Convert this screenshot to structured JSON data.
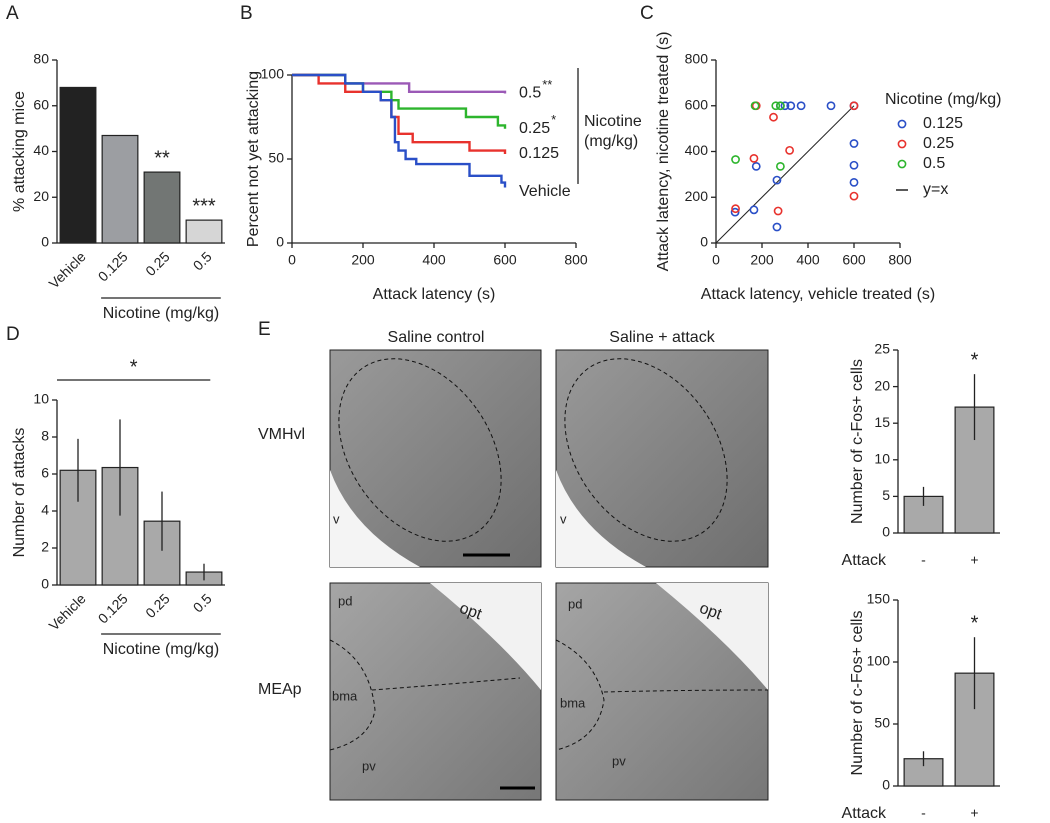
{
  "chart_data": [
    {
      "panel": "A",
      "type": "bar",
      "ylabel": "% attacking mice",
      "categories": [
        "Vehicle",
        "0.125",
        "0.25",
        "0.5"
      ],
      "values": [
        68,
        47,
        31,
        10
      ],
      "colors": [
        "#222222",
        "#9c9ea2",
        "#727674",
        "#d6d6d6"
      ],
      "ylim": [
        0,
        80
      ],
      "yticks": [
        0,
        20,
        40,
        60,
        80
      ],
      "annotations": [
        {
          "category": "0.25",
          "text": "**"
        },
        {
          "category": "0.5",
          "text": "***"
        }
      ],
      "group_label": {
        "text": "Nicotine (mg/kg)",
        "categories": [
          "0.125",
          "0.25",
          "0.5"
        ]
      }
    },
    {
      "panel": "B",
      "type": "line",
      "step": true,
      "xlabel": "Attack latency (s)",
      "ylabel": "Percent not yet attacking",
      "xlim": [
        0,
        800
      ],
      "xticks": [
        0,
        200,
        400,
        600,
        800
      ],
      "ylim": [
        0,
        100
      ],
      "yticks": [
        0,
        50,
        100
      ],
      "series": [
        {
          "name": "0.5",
          "annotation": "**",
          "color": "#9b59b6",
          "x": [
            0,
            150,
            330,
            600
          ],
          "values": [
            100,
            95,
            90,
            89
          ]
        },
        {
          "name": "0.25",
          "annotation": "*",
          "color": "#2db52d",
          "x": [
            0,
            150,
            200,
            280,
            300,
            490,
            580,
            600
          ],
          "values": [
            100,
            95,
            90,
            85,
            80,
            75,
            70,
            68
          ]
        },
        {
          "name": "0.125",
          "color": "#e8322d",
          "x": [
            0,
            75,
            150,
            250,
            280,
            300,
            340,
            500,
            600
          ],
          "values": [
            100,
            95,
            90,
            85,
            75,
            65,
            60,
            55,
            53
          ]
        },
        {
          "name": "Vehicle",
          "color": "#2a4fc7",
          "x": [
            0,
            150,
            200,
            250,
            280,
            290,
            300,
            320,
            350,
            500,
            590,
            600
          ],
          "values": [
            100,
            95,
            90,
            85,
            75,
            60,
            55,
            50,
            47,
            40,
            36,
            33
          ]
        }
      ],
      "bracket_label": [
        "Nicotine",
        "(mg/kg)"
      ]
    },
    {
      "panel": "C",
      "type": "scatter",
      "xlabel": "Attack latency, vehicle treated (s)",
      "ylabel": "Attack latency, nicotine treated (s)",
      "xlim": [
        0,
        800
      ],
      "xticks": [
        0,
        200,
        400,
        600,
        800
      ],
      "ylim": [
        0,
        800
      ],
      "yticks": [
        0,
        200,
        400,
        600,
        800
      ],
      "legend_title": "Nicotine (mg/kg)",
      "series": [
        {
          "name": "0.125",
          "color": "#2a4fc7",
          "x": [
            83,
            165,
            175,
            265,
            265,
            280,
            300,
            325,
            370,
            500,
            600,
            600,
            600,
            600
          ],
          "values": [
            135,
            145,
            335,
            70,
            275,
            600,
            600,
            600,
            600,
            600,
            600,
            435,
            340,
            265
          ]
        },
        {
          "name": "0.25",
          "color": "#e8322d",
          "x": [
            85,
            165,
            175,
            250,
            270,
            320,
            600,
            600
          ],
          "values": [
            150,
            370,
            600,
            550,
            140,
            405,
            600,
            205
          ]
        },
        {
          "name": "0.5",
          "color": "#2db52d",
          "x": [
            85,
            170,
            260,
            280,
            280
          ],
          "values": [
            365,
            600,
            600,
            600,
            335
          ]
        }
      ],
      "reference_line": {
        "name": "y=x"
      }
    },
    {
      "panel": "D",
      "type": "bar",
      "ylabel": "Number of attacks",
      "categories": [
        "Vehicle",
        "0.125",
        "0.25",
        "0.5"
      ],
      "values": [
        6.2,
        6.35,
        3.45,
        0.7
      ],
      "errors": [
        1.7,
        2.6,
        1.6,
        0.45
      ],
      "color": "#a9a9a9",
      "ylim": [
        0,
        10
      ],
      "yticks": [
        0,
        2,
        4,
        6,
        8,
        10
      ],
      "significance": {
        "text": "*",
        "categories": [
          "Vehicle",
          "0.125",
          "0.25",
          "0.5"
        ]
      },
      "group_label": {
        "text": "Nicotine (mg/kg)",
        "categories": [
          "0.125",
          "0.25",
          "0.5"
        ]
      }
    },
    {
      "type": "bar",
      "ylabel": "Number of c-Fos+ cells",
      "xlabel": "Attack",
      "categories": [
        "-",
        "+"
      ],
      "values": [
        5,
        17.2
      ],
      "errors": [
        1.3,
        4.5
      ],
      "color": "#a9a9a9",
      "ylim": [
        0,
        25
      ],
      "yticks": [
        0,
        5,
        10,
        15,
        20,
        25
      ],
      "annotations": [
        {
          "category": "+",
          "text": "*"
        }
      ]
    },
    {
      "type": "bar",
      "ylabel": "Number of c-Fos+ cells",
      "xlabel": "Attack",
      "categories": [
        "-",
        "+"
      ],
      "values": [
        22,
        91
      ],
      "errors": [
        6,
        29
      ],
      "color": "#a9a9a9",
      "ylim": [
        0,
        150
      ],
      "yticks": [
        0,
        50,
        100,
        150
      ],
      "annotations": [
        {
          "category": "+",
          "text": "*"
        }
      ]
    }
  ],
  "micrographs": {
    "panel": "E",
    "columns": [
      "Saline control",
      "Saline + attack"
    ],
    "rows": [
      "VMHvl",
      "MEAp"
    ],
    "images": [
      {
        "labels": [
          "v"
        ]
      },
      {
        "labels": [
          "v"
        ]
      },
      {
        "labels": [
          "pd",
          "opt",
          "bma",
          "pv"
        ]
      },
      {
        "labels": [
          "pd",
          "opt",
          "bma",
          "pv"
        ]
      }
    ]
  }
}
